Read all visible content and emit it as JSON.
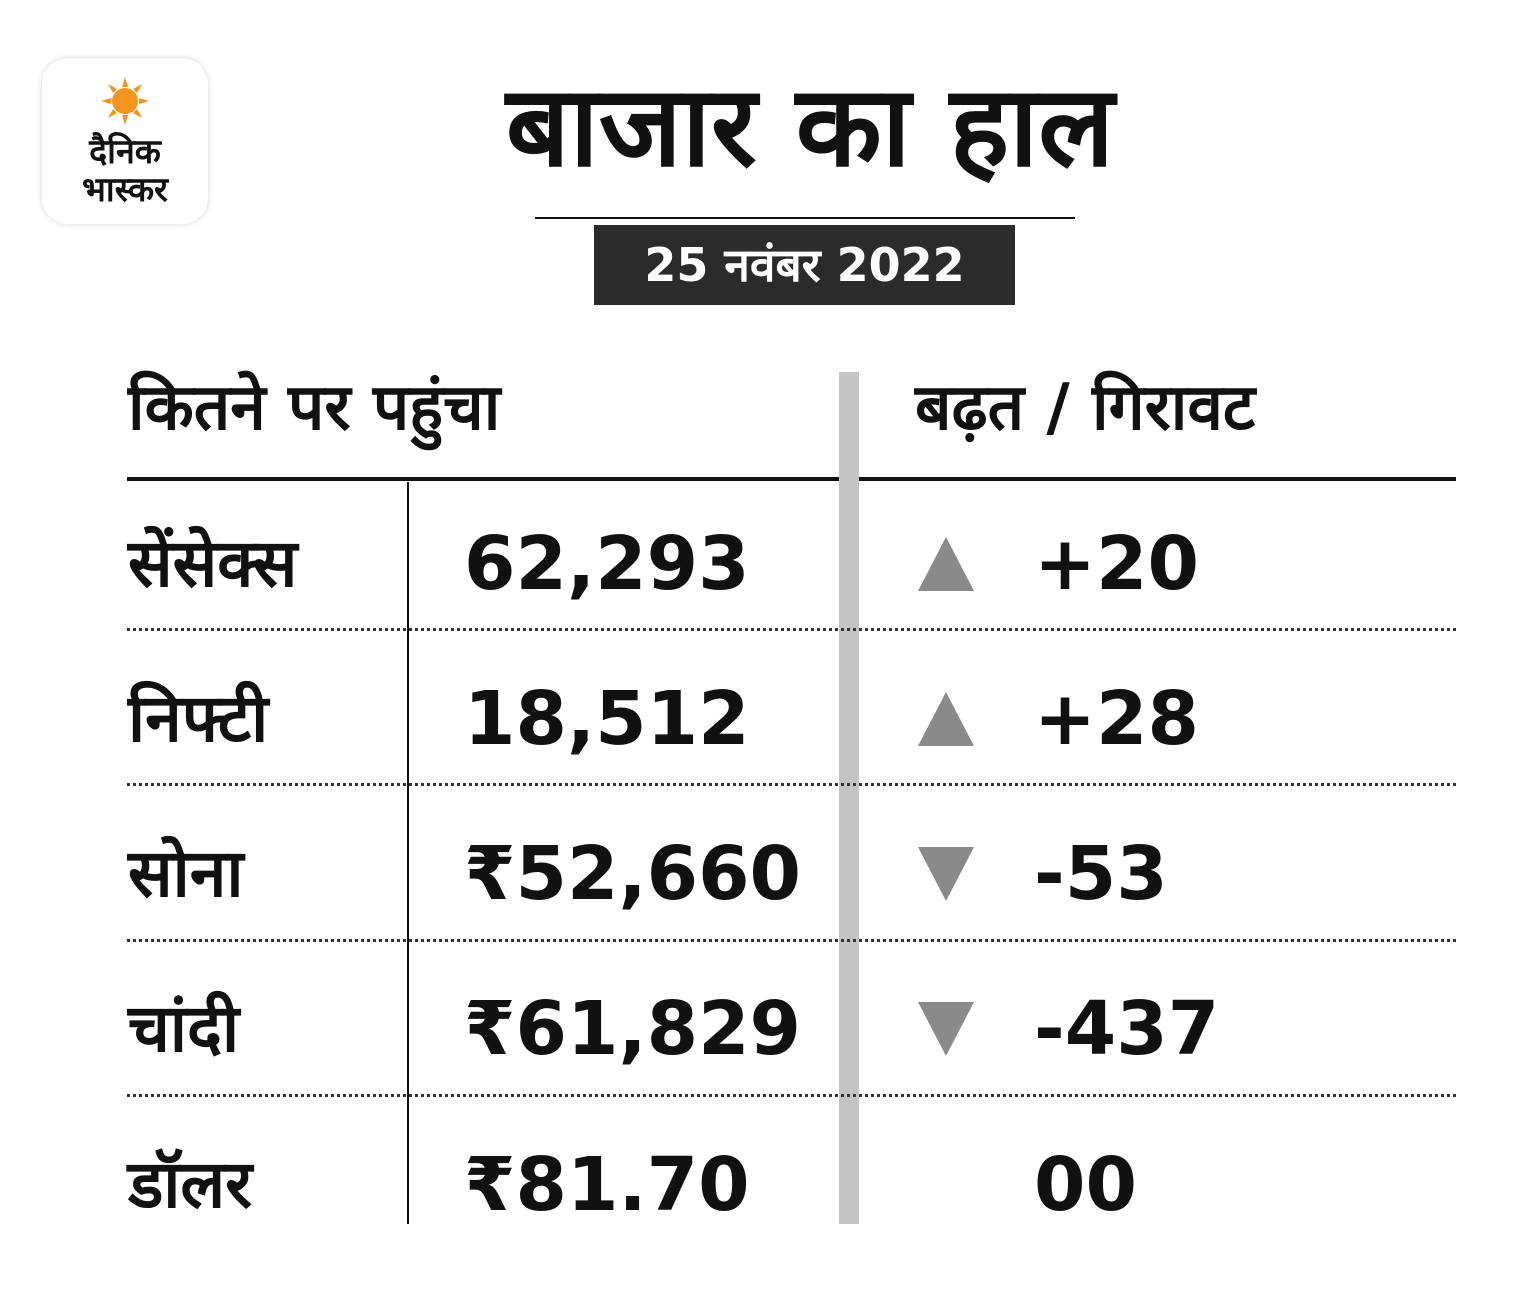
{
  "brand": {
    "line1": "दैनिक",
    "line2": "भास्कर"
  },
  "title": "बाजार का हाल",
  "date": "25 नवंबर 2022",
  "headers": {
    "left": "कितने पर पहुंचा",
    "right": "बढ़त / गिरावट"
  },
  "colors": {
    "sun": "#F7941D",
    "date_bg": "#2B2B2B",
    "arrow": "#8A8A8A",
    "divider": "#C4C4C4"
  },
  "rows": [
    {
      "name": "सेंसेक्स",
      "value": "62,293",
      "change": "+20",
      "direction": "up"
    },
    {
      "name": "निफ्टी",
      "value": "18,512",
      "change": "+28",
      "direction": "up"
    },
    {
      "name": "सोना",
      "value": "₹52,660",
      "change": "-53",
      "direction": "down"
    },
    {
      "name": "चांदी",
      "value": "₹61,829",
      "change": "-437",
      "direction": "down"
    },
    {
      "name": "डॉलर",
      "value": "₹81.70",
      "change": "00",
      "direction": "none"
    }
  ]
}
